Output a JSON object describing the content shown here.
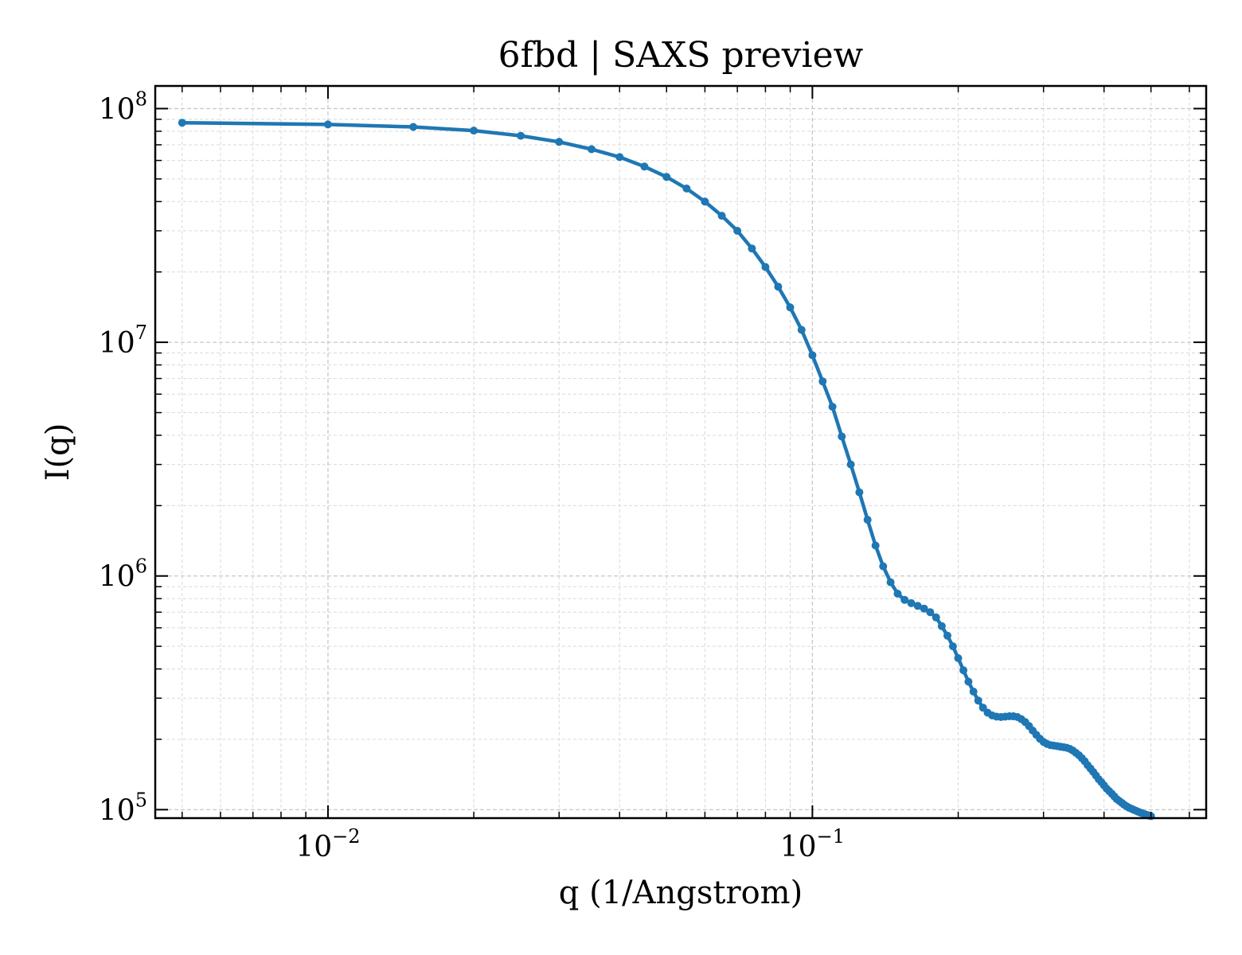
{
  "chart_data": {
    "type": "line",
    "title": "6fbd | SAXS preview",
    "xlabel": "q (1/Angstrom)",
    "ylabel": "I(q)",
    "xscale": "log",
    "yscale": "log",
    "xlim": [
      0.0044,
      0.65
    ],
    "ylim": [
      92000,
      125000000
    ],
    "grid": true,
    "legend": "none",
    "color": "#1f77b4",
    "x_tick_labels": [
      {
        "base": "10",
        "exp": "−2"
      },
      {
        "base": "10",
        "exp": "−1"
      }
    ],
    "y_tick_labels": [
      {
        "base": "10",
        "exp": "5"
      },
      {
        "base": "10",
        "exp": "6"
      },
      {
        "base": "10",
        "exp": "7"
      },
      {
        "base": "10",
        "exp": "8"
      }
    ],
    "series": [
      {
        "x": [
          0.005,
          0.01,
          0.015,
          0.02,
          0.025,
          0.03,
          0.035,
          0.04,
          0.045,
          0.05,
          0.055,
          0.06,
          0.065,
          0.07,
          0.075,
          0.08,
          0.085,
          0.09,
          0.095,
          0.1,
          0.105,
          0.11,
          0.115,
          0.12,
          0.125,
          0.13,
          0.135,
          0.14,
          0.145,
          0.15,
          0.155,
          0.16,
          0.165,
          0.17,
          0.175,
          0.18,
          0.185,
          0.19,
          0.195,
          0.2,
          0.205,
          0.21,
          0.215,
          0.22,
          0.225,
          0.23,
          0.235,
          0.24,
          0.245,
          0.25,
          0.255,
          0.26,
          0.265,
          0.27,
          0.275,
          0.28,
          0.285,
          0.29,
          0.295,
          0.3,
          0.305,
          0.31,
          0.315,
          0.32,
          0.325,
          0.33,
          0.335,
          0.34,
          0.345,
          0.35,
          0.355,
          0.36,
          0.365,
          0.37,
          0.375,
          0.38,
          0.385,
          0.39,
          0.395,
          0.4,
          0.405,
          0.41,
          0.415,
          0.42,
          0.425,
          0.43,
          0.435,
          0.44,
          0.445,
          0.45,
          0.455,
          0.46,
          0.465,
          0.47,
          0.475,
          0.48,
          0.485,
          0.49,
          0.495,
          0.5
        ],
        "y": [
          87000000,
          85500000,
          83500000,
          80500000,
          76500000,
          72000000,
          67000000,
          62000000,
          56500000,
          51000000,
          45500000,
          40000000,
          34800000,
          30000000,
          25200000,
          21000000,
          17300000,
          14100000,
          11300000,
          8800000,
          6800000,
          5300000,
          3950000,
          3000000,
          2280000,
          1740000,
          1350000,
          1100000,
          940000,
          840000,
          790000,
          765000,
          745000,
          725000,
          700000,
          665000,
          610000,
          555000,
          500000,
          445000,
          395000,
          353000,
          320000,
          293000,
          273000,
          260000,
          253000,
          250000,
          249000,
          250000,
          251000,
          251000,
          249000,
          244000,
          237000,
          228000,
          218000,
          209000,
          201000,
          195000,
          191000,
          189000,
          188000,
          187000,
          186000,
          185000,
          184000,
          182000,
          179000,
          175000,
          171000,
          166000,
          161000,
          155000,
          150000,
          145000,
          140000,
          135000,
          131000,
          127000,
          123000,
          120000,
          117000,
          114000,
          111000,
          109000,
          107000,
          105000,
          103500,
          102000,
          101000,
          100000,
          99000,
          98000,
          97200,
          96400,
          95700,
          95000,
          94400,
          93800
        ]
      }
    ]
  }
}
